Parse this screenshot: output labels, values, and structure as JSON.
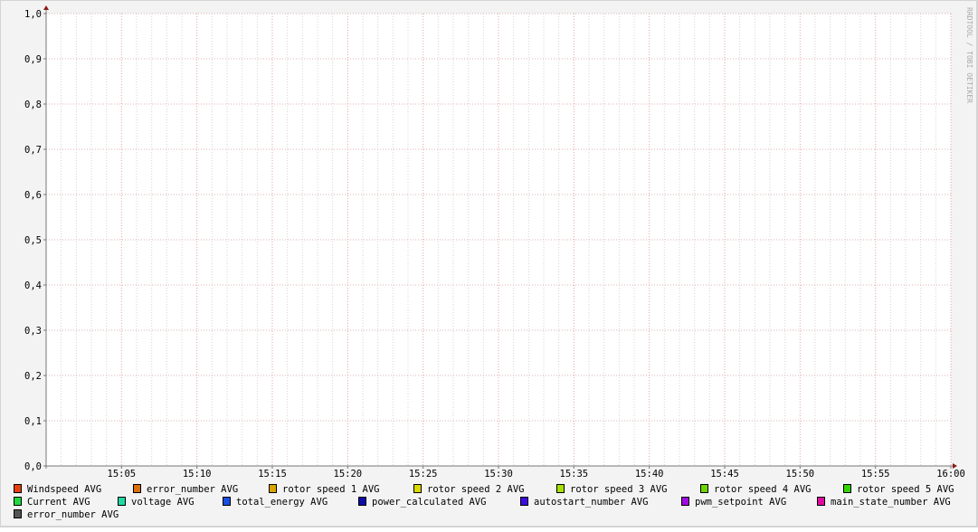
{
  "chart_data": {
    "type": "line",
    "title": "",
    "xlabel": "",
    "ylabel": "",
    "watermark": "RRDTOOL / TOBI OETIKER",
    "ylim": [
      0,
      1
    ],
    "y_ticks": [
      "0,0",
      "0,1",
      "0,2",
      "0,3",
      "0,4",
      "0,5",
      "0,6",
      "0,7",
      "0,8",
      "0,9",
      "1,0"
    ],
    "x_range": [
      "15:00",
      "16:00"
    ],
    "x_ticks": [
      "15:05",
      "15:10",
      "15:15",
      "15:20",
      "15:25",
      "15:30",
      "15:35",
      "15:40",
      "15:45",
      "15:50",
      "15:55",
      "16:00"
    ],
    "grid": true,
    "legend_position": "bottom",
    "series": [
      {
        "name": "Windspeed AVG",
        "color": "#e8400c",
        "values": []
      },
      {
        "name": "error_number AVG",
        "color": "#d9700c",
        "values": []
      },
      {
        "name": "rotor speed 1 AVG",
        "color": "#d9a300",
        "values": []
      },
      {
        "name": "rotor speed 2 AVG",
        "color": "#d9d900",
        "values": []
      },
      {
        "name": "rotor speed 3 AVG",
        "color": "#a6e000",
        "values": []
      },
      {
        "name": "rotor speed 4 AVG",
        "color": "#6ed500",
        "values": []
      },
      {
        "name": "rotor speed 5 AVG",
        "color": "#33d400",
        "values": []
      },
      {
        "name": "Current AVG",
        "color": "#1fd940",
        "values": []
      },
      {
        "name": "voltage AVG",
        "color": "#1fd9a6",
        "values": []
      },
      {
        "name": "total_energy AVG",
        "color": "#1a4fe0",
        "values": []
      },
      {
        "name": "power_calculated AVG",
        "color": "#0c0ca8",
        "values": []
      },
      {
        "name": "autostart_number AVG",
        "color": "#3f0ce0",
        "values": []
      },
      {
        "name": "pwm_setpoint AVG",
        "color": "#a00ce0",
        "values": []
      },
      {
        "name": "main_state_number AVG",
        "color": "#e00c9f",
        "values": []
      },
      {
        "name": "error_number AVG",
        "color": "#555555",
        "values": []
      }
    ]
  }
}
